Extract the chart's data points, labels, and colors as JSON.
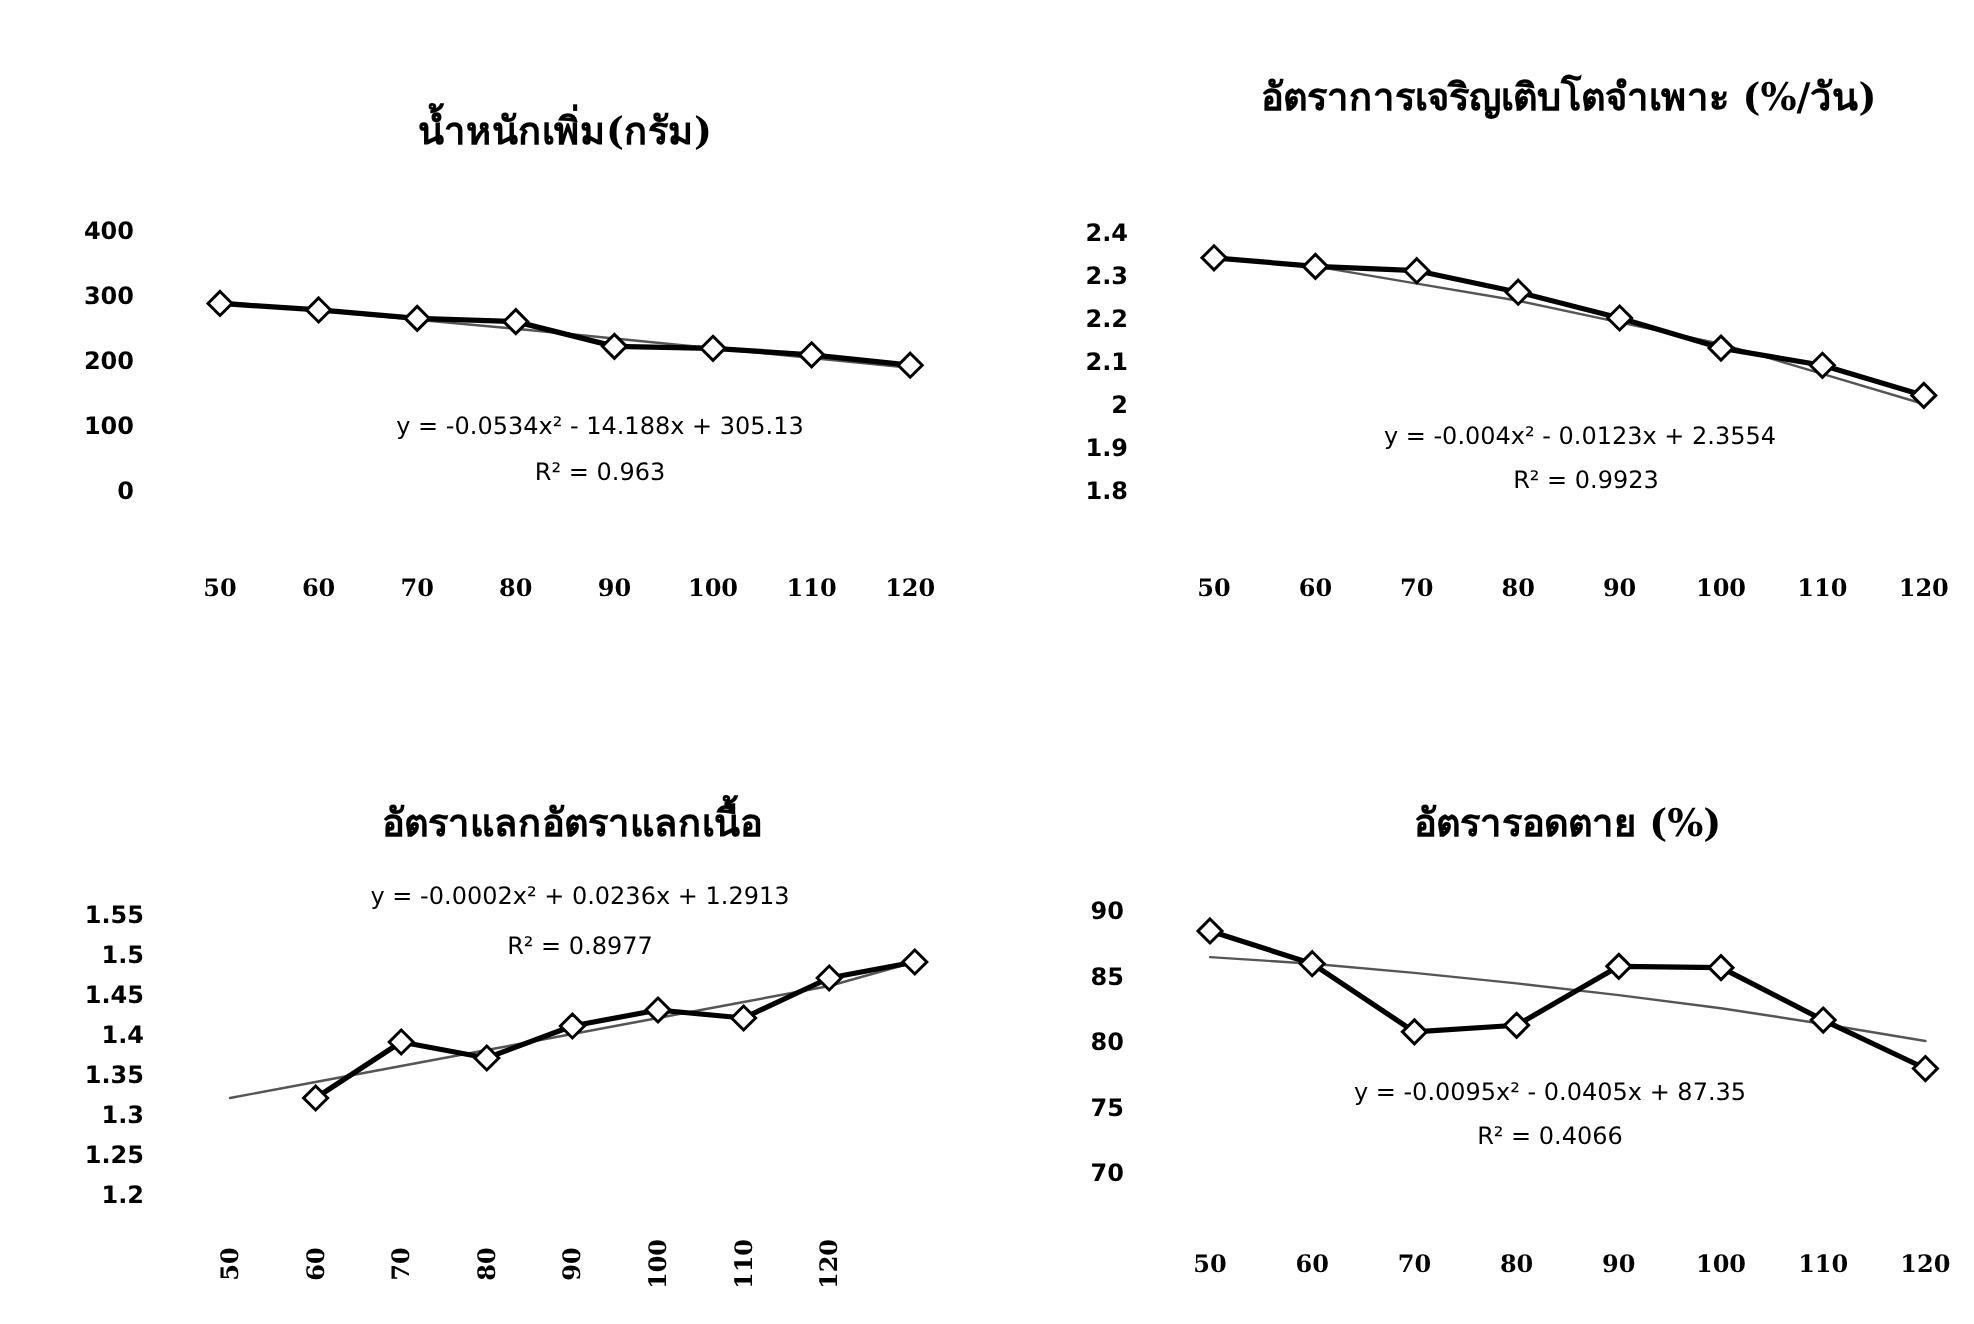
{
  "chart_data": [
    {
      "type": "line",
      "title": "น้ำหนักเพิ่ม(กรัม)",
      "categories": [
        "50",
        "60",
        "70",
        "80",
        "90",
        "100",
        "110",
        "120"
      ],
      "series": [
        {
          "color": "#000000",
          "marker": "diamond",
          "values": [
            287,
            277,
            264,
            259,
            221,
            218,
            208,
            192
          ]
        },
        {
          "color": "#555555",
          "marker": "none",
          "values": [
            290,
            276,
            262,
            248,
            233,
            218,
            203,
            188
          ]
        }
      ],
      "ylim": [
        0,
        400
      ],
      "yticks": [
        0,
        100,
        200,
        300,
        400
      ],
      "annotations": [
        "y = -0.0534x² - 14.188x + 305.13",
        "R² = 0.963"
      ]
    },
    {
      "type": "line",
      "title": "อัตราการเจริญเติบโตจำเพาะ (%/วัน)",
      "categories": [
        "50",
        "60",
        "70",
        "80",
        "90",
        "100",
        "110",
        "120"
      ],
      "series": [
        {
          "color": "#000000",
          "marker": "diamond",
          "values": [
            2.34,
            2.32,
            2.31,
            2.26,
            2.2,
            2.13,
            2.09,
            2.02
          ]
        },
        {
          "color": "#555555",
          "marker": "none",
          "values": [
            2.34,
            2.32,
            2.28,
            2.24,
            2.19,
            2.14,
            2.07,
            2.0
          ]
        }
      ],
      "ylim": [
        1.8,
        2.4
      ],
      "yticks": [
        1.8,
        1.9,
        2,
        2.1,
        2.2,
        2.3,
        2.4
      ],
      "annotations": [
        "y = -0.004x² - 0.0123x + 2.3554",
        "R² = 0.9923"
      ]
    },
    {
      "type": "line",
      "title": "อัตราแลกอัตราแลกเนื้อ",
      "categories": [
        "50",
        "60",
        "70",
        "80",
        "90",
        "100",
        "110",
        "120",
        null
      ],
      "series": [
        {
          "color": "#000000",
          "marker": "diamond",
          "values": [
            null,
            1.32,
            1.39,
            1.37,
            1.41,
            1.43,
            1.42,
            1.47,
            1.49
          ]
        },
        {
          "color": "#555555",
          "marker": "none",
          "values": [
            1.32,
            1.34,
            1.36,
            1.38,
            1.4,
            1.42,
            1.44,
            1.46,
            1.49
          ]
        }
      ],
      "ylim": [
        1.2,
        1.55
      ],
      "yticks": [
        1.2,
        1.25,
        1.3,
        1.35,
        1.4,
        1.45,
        1.5,
        1.55
      ],
      "annotations": [
        "y = -0.0002x² + 0.0236x + 1.2913",
        "R² = 0.8977"
      ]
    },
    {
      "type": "line",
      "title": "อัตรารอดตาย (%)",
      "categories": [
        "50",
        "60",
        "70",
        "80",
        "90",
        "100",
        "110",
        "120"
      ],
      "series": [
        {
          "color": "#000000",
          "marker": "diamond",
          "values": [
            88.4,
            85.9,
            80.7,
            81.2,
            85.7,
            85.6,
            81.6,
            77.9
          ]
        },
        {
          "color": "#555555",
          "marker": "none",
          "values": [
            86.4,
            85.9,
            85.2,
            84.4,
            83.5,
            82.5,
            81.3,
            80.0
          ]
        }
      ],
      "ylim": [
        70,
        90
      ],
      "yticks": [
        70,
        75,
        80,
        85,
        90
      ],
      "annotations": [
        "y = -0.0095x² - 0.0405x + 87.35",
        "R² = 0.4066"
      ]
    }
  ]
}
